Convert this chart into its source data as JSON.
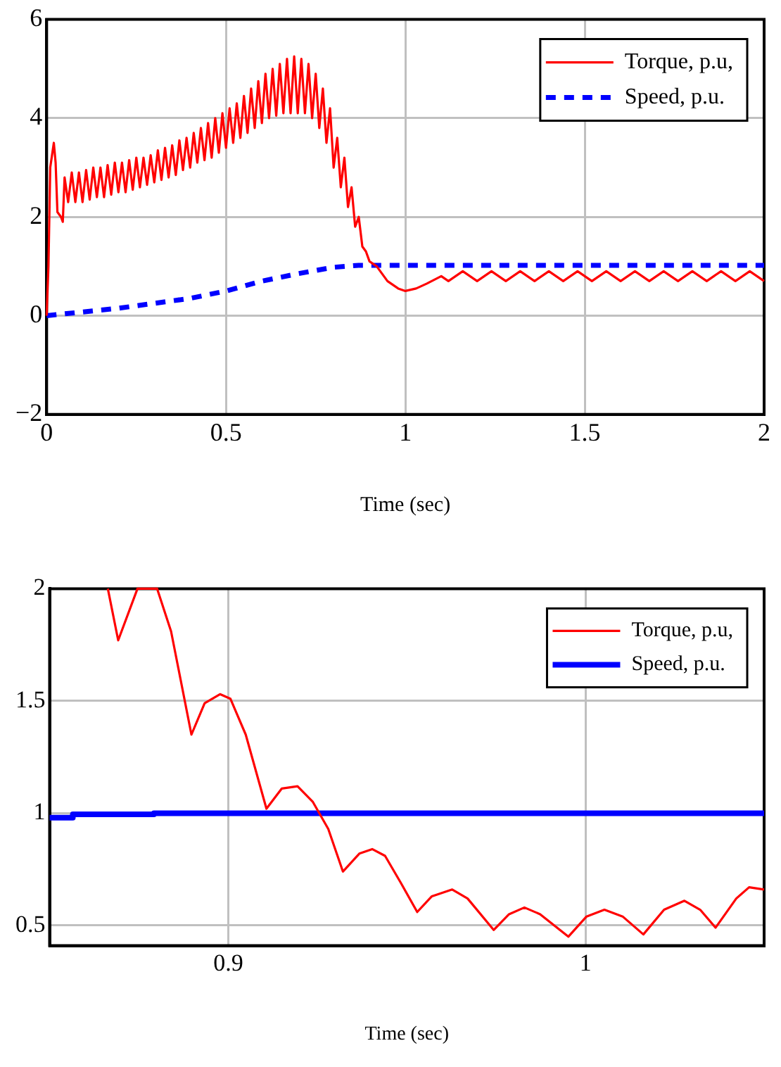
{
  "chart_data": [
    {
      "type": "line",
      "xlabel": "Time (sec)",
      "xlim": [
        0,
        2
      ],
      "xticks": [
        0,
        0.5,
        1,
        1.5,
        2
      ],
      "ylim": [
        -2,
        6
      ],
      "yticks": [
        -2,
        0,
        2,
        4,
        6
      ],
      "grid": true,
      "legend": "top right",
      "series": [
        {
          "name": "Torque, p.u,",
          "color": "#ff0000",
          "line_style": "solid",
          "x": [
            0,
            0.005,
            0.01,
            0.02,
            0.025,
            0.03,
            0.04,
            0.045,
            0.05,
            0.06,
            0.07,
            0.08,
            0.09,
            0.1,
            0.11,
            0.12,
            0.13,
            0.14,
            0.15,
            0.16,
            0.17,
            0.18,
            0.19,
            0.2,
            0.21,
            0.22,
            0.23,
            0.24,
            0.25,
            0.26,
            0.27,
            0.28,
            0.29,
            0.3,
            0.31,
            0.32,
            0.33,
            0.34,
            0.35,
            0.36,
            0.37,
            0.38,
            0.39,
            0.4,
            0.41,
            0.42,
            0.43,
            0.44,
            0.45,
            0.46,
            0.47,
            0.48,
            0.49,
            0.5,
            0.51,
            0.52,
            0.53,
            0.54,
            0.55,
            0.56,
            0.57,
            0.58,
            0.59,
            0.6,
            0.61,
            0.62,
            0.63,
            0.64,
            0.65,
            0.66,
            0.67,
            0.68,
            0.69,
            0.7,
            0.71,
            0.72,
            0.73,
            0.74,
            0.75,
            0.76,
            0.77,
            0.78,
            0.79,
            0.8,
            0.81,
            0.82,
            0.83,
            0.84,
            0.85,
            0.86,
            0.87,
            0.88,
            0.89,
            0.9,
            0.92,
            0.95,
            0.98,
            1,
            1.03,
            1.06,
            1.1,
            1.12,
            1.16,
            1.2,
            1.24,
            1.28,
            1.32,
            1.36,
            1.4,
            1.44,
            1.48,
            1.52,
            1.56,
            1.6,
            1.64,
            1.68,
            1.72,
            1.76,
            1.8,
            1.84,
            1.88,
            1.92,
            1.96,
            2
          ],
          "values": [
            0,
            1,
            3,
            3.5,
            3.1,
            2.1,
            2,
            1.9,
            2.8,
            2.3,
            2.9,
            2.3,
            2.9,
            2.3,
            2.95,
            2.35,
            3,
            2.4,
            3,
            2.4,
            3.05,
            2.45,
            3.1,
            2.5,
            3.1,
            2.5,
            3.15,
            2.55,
            3.2,
            2.6,
            3.2,
            2.65,
            3.25,
            2.7,
            3.35,
            2.75,
            3.4,
            2.8,
            3.45,
            2.85,
            3.55,
            2.95,
            3.6,
            3,
            3.7,
            3.1,
            3.8,
            3.15,
            3.9,
            3.2,
            4,
            3.3,
            4.1,
            3.4,
            4.2,
            3.5,
            4.3,
            3.6,
            4.45,
            3.7,
            4.6,
            3.8,
            4.75,
            3.9,
            4.9,
            4,
            5,
            4.05,
            5.1,
            4.1,
            5.2,
            4.1,
            5.25,
            4.1,
            5.2,
            4.1,
            5.1,
            4,
            4.9,
            3.8,
            4.6,
            3.5,
            4.2,
            3,
            3.6,
            2.6,
            3.2,
            2.2,
            2.6,
            1.8,
            2,
            1.4,
            1.3,
            1.1,
            1,
            0.7,
            0.55,
            0.5,
            0.55,
            0.65,
            0.8,
            0.7,
            0.9,
            0.7,
            0.9,
            0.7,
            0.9,
            0.7,
            0.9,
            0.7,
            0.9,
            0.7,
            0.9,
            0.7,
            0.9,
            0.7,
            0.9,
            0.7,
            0.9,
            0.7,
            0.9,
            0.7,
            0.9,
            0.7
          ]
        },
        {
          "name": "Speed, p.u.",
          "color": "#0000ff",
          "line_style": "dashed",
          "x": [
            0,
            0.2,
            0.4,
            0.5,
            0.6,
            0.7,
            0.8,
            0.87,
            0.9,
            2
          ],
          "values": [
            0,
            0.15,
            0.35,
            0.5,
            0.7,
            0.85,
            0.98,
            1.02,
            1.02,
            1.02
          ]
        }
      ]
    },
    {
      "type": "line",
      "xlabel": "Time (sec)",
      "xlim": [
        0.85,
        1.05
      ],
      "xticks": [
        0.9,
        1
      ],
      "ylim": [
        0.41,
        2
      ],
      "yticks": [
        0.5,
        1,
        1.5,
        2
      ],
      "grid": true,
      "legend": "top right",
      "series": [
        {
          "name": "Torque, p.u,",
          "color": "#ff0000",
          "line_style": "solid",
          "x": [
            0.8663,
            0.8692,
            0.8746,
            0.8801,
            0.884,
            0.8897,
            0.8934,
            0.8977,
            0.9006,
            0.9049,
            0.9107,
            0.915,
            0.9194,
            0.9237,
            0.928,
            0.9321,
            0.9367,
            0.9403,
            0.9439,
            0.9483,
            0.9529,
            0.957,
            0.9627,
            0.967,
            0.9743,
            0.9786,
            0.9829,
            0.9873,
            0.9952,
            1.0003,
            1.0053,
            1.0104,
            1.0162,
            1.022,
            1.0277,
            1.0321,
            1.0364,
            1.0422,
            1.0458,
            1.05
          ],
          "values": [
            2,
            1.77,
            2,
            2,
            1.81,
            1.35,
            1.49,
            1.53,
            1.51,
            1.35,
            1.02,
            1.11,
            1.12,
            1.05,
            0.93,
            0.74,
            0.82,
            0.84,
            0.81,
            0.69,
            0.56,
            0.63,
            0.66,
            0.62,
            0.48,
            0.55,
            0.58,
            0.55,
            0.45,
            0.54,
            0.57,
            0.54,
            0.46,
            0.57,
            0.61,
            0.57,
            0.49,
            0.62,
            0.67,
            0.66
          ]
        },
        {
          "name": "Speed, p.u.",
          "color": "#0000ff",
          "line_style": "solid",
          "x": [
            0.85,
            0.8565,
            0.8565,
            0.8792,
            0.8792,
            1.05
          ],
          "values": [
            0.98,
            0.98,
            0.995,
            0.995,
            1,
            1
          ]
        }
      ]
    }
  ]
}
